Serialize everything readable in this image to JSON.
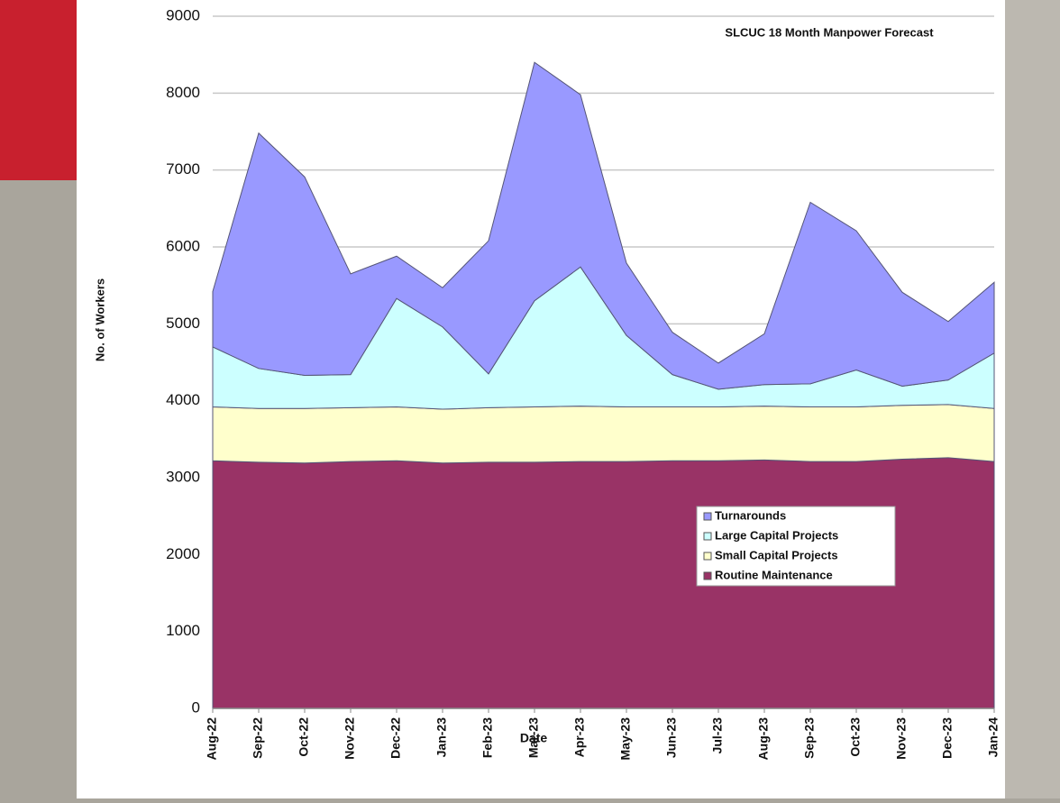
{
  "chart_data": {
    "type": "stacked-area",
    "title": "SLCUC 18 Month Manpower Forecast",
    "x_label": "Date",
    "y_label": "No. of Workers",
    "categories": [
      "Aug-22",
      "Sep-22",
      "Oct-22",
      "Nov-22",
      "Dec-22",
      "Jan-23",
      "Feb-23",
      "Mar-23",
      "Apr-23",
      "May-23",
      "Jun-23",
      "Jul-23",
      "Aug-23",
      "Sep-23",
      "Oct-23",
      "Nov-23",
      "Dec-23",
      "Jan-24"
    ],
    "series": [
      {
        "name": "Routine Maintenance",
        "color": "#993366",
        "values": [
          3220,
          3200,
          3190,
          3210,
          3220,
          3190,
          3200,
          3200,
          3210,
          3210,
          3220,
          3220,
          3230,
          3210,
          3210,
          3240,
          3260,
          3210
        ]
      },
      {
        "name": "Small Capital Projects",
        "color": "#ffffcc",
        "values": [
          700,
          700,
          710,
          700,
          700,
          700,
          710,
          720,
          720,
          710,
          700,
          700,
          700,
          710,
          710,
          700,
          690,
          690
        ]
      },
      {
        "name": "Large Capital Projects",
        "color": "#ccffff",
        "values": [
          780,
          520,
          430,
          430,
          1410,
          1070,
          440,
          1380,
          1810,
          930,
          420,
          230,
          280,
          300,
          480,
          250,
          320,
          720
        ]
      },
      {
        "name": "Turnarounds",
        "color": "#9999ff",
        "values": [
          720,
          3060,
          2580,
          1310,
          550,
          510,
          1730,
          3100,
          2240,
          940,
          550,
          340,
          660,
          2360,
          1810,
          1220,
          760,
          920
        ]
      }
    ],
    "ylim": [
      0,
      9000
    ],
    "yticks": [
      0,
      1000,
      2000,
      3000,
      4000,
      5000,
      6000,
      7000,
      8000,
      9000
    ],
    "grid": true,
    "legend_position": "right"
  }
}
